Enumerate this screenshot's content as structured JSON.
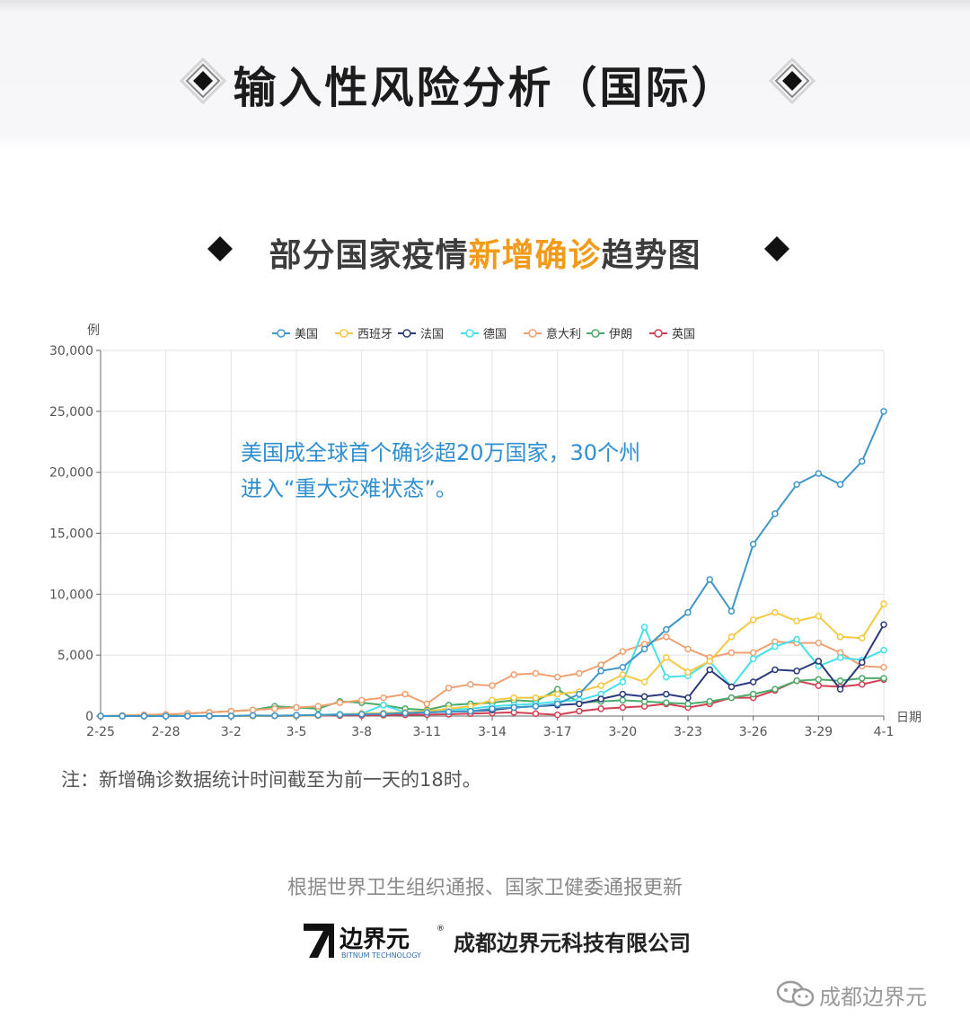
{
  "header": {
    "title": "输入性风险分析（国际）"
  },
  "chart_header": {
    "title_prefix": "部分国家疫情",
    "title_highlight": "新增确诊",
    "title_suffix": "趋势图"
  },
  "annotation": {
    "line1": "美国成全球首个确诊超20万国家，30个州",
    "line2": "进入“重大灾难状态”。"
  },
  "note": "注：新增确诊数据统计时间截至为前一天的18时。",
  "source": "根据世界卫生组织通报、国家卫健委通报更新",
  "company": "成都边界元科技有限公司",
  "logo": {
    "brand_chars": "边界元",
    "english": "BITNUM TECHNOLOGY",
    "mark": "®"
  },
  "wechat_label": "成都边界元",
  "colors": {
    "title_highlight": "#f29a1a",
    "annotation": "#2f8fcf"
  },
  "chart_data": {
    "type": "line",
    "ylabel": "例",
    "xlabel": "日期",
    "ylim": [
      0,
      30000
    ],
    "yticks": [
      "0",
      "5,000",
      "10,000",
      "15,000",
      "20,000",
      "25,000",
      "30,000"
    ],
    "grid": true,
    "legend_position": "top-center",
    "categories": [
      "2-25",
      "2-26",
      "2-27",
      "2-28",
      "2-29",
      "3-1",
      "3-2",
      "3-3",
      "3-4",
      "3-5",
      "3-6",
      "3-7",
      "3-8",
      "3-9",
      "3-10",
      "3-11",
      "3-12",
      "3-13",
      "3-14",
      "3-15",
      "3-16",
      "3-17",
      "3-18",
      "3-19",
      "3-20",
      "3-21",
      "3-22",
      "3-23",
      "3-24",
      "3-25",
      "3-26",
      "3-27",
      "3-28",
      "3-29",
      "3-30",
      "3-31",
      "4-1"
    ],
    "tick_labels": [
      "2-25",
      "2-28",
      "3-2",
      "3-5",
      "3-8",
      "3-11",
      "3-14",
      "3-17",
      "3-20",
      "3-23",
      "3-26",
      "3-29",
      "4-1"
    ],
    "series": [
      {
        "name": "美国",
        "color": "#3f97c8",
        "values": [
          0,
          0,
          0,
          0,
          0,
          0,
          0,
          50,
          30,
          60,
          80,
          120,
          150,
          180,
          250,
          300,
          350,
          400,
          600,
          700,
          800,
          1000,
          1800,
          3700,
          4000,
          5500,
          7100,
          8500,
          11200,
          8600,
          14100,
          16600,
          19000,
          19900,
          19000,
          20900,
          25000
        ]
      },
      {
        "name": "西班牙",
        "color": "#f5c842",
        "values": [
          0,
          0,
          0,
          0,
          0,
          0,
          0,
          10,
          20,
          30,
          50,
          120,
          200,
          250,
          300,
          400,
          600,
          800,
          1300,
          1500,
          1500,
          1800,
          2000,
          2500,
          3400,
          2800,
          4800,
          3600,
          4500,
          6500,
          7900,
          8500,
          7800,
          8200,
          6500,
          6400,
          9200
        ]
      },
      {
        "name": "法国",
        "color": "#2b3a7a",
        "values": [
          0,
          0,
          0,
          0,
          0,
          0,
          0,
          10,
          20,
          30,
          50,
          100,
          150,
          200,
          250,
          300,
          350,
          400,
          500,
          700,
          800,
          900,
          1000,
          1400,
          1800,
          1600,
          1800,
          1500,
          3800,
          2400,
          2800,
          3800,
          3700,
          4500,
          2200,
          4400,
          7500
        ]
      },
      {
        "name": "德国",
        "color": "#45e0e8",
        "values": [
          0,
          0,
          0,
          0,
          0,
          0,
          0,
          20,
          40,
          50,
          100,
          150,
          200,
          900,
          300,
          400,
          500,
          600,
          800,
          900,
          1000,
          1200,
          1300,
          1800,
          2800,
          7300,
          3200,
          3300,
          4500,
          2400,
          4700,
          5700,
          6300,
          4100,
          4800,
          4600,
          5400
        ]
      },
      {
        "name": "意大利",
        "color": "#f0a070",
        "values": [
          0,
          50,
          100,
          150,
          200,
          300,
          400,
          500,
          600,
          700,
          800,
          1100,
          1300,
          1500,
          1800,
          1000,
          2300,
          2600,
          2500,
          3400,
          3500,
          3200,
          3500,
          4200,
          5300,
          5900,
          6500,
          5500,
          4800,
          5200,
          5200,
          6100,
          6000,
          6000,
          5200,
          4100,
          4000
        ]
      },
      {
        "name": "伊朗",
        "color": "#4caa6a",
        "values": [
          0,
          0,
          0,
          100,
          200,
          300,
          400,
          500,
          800,
          700,
          600,
          1200,
          1100,
          900,
          600,
          500,
          900,
          1000,
          1100,
          1300,
          1200,
          2200,
          1100,
          1200,
          1300,
          1200,
          1100,
          1000,
          1200,
          1500,
          1800,
          2200,
          2900,
          3000,
          2900,
          3100,
          3100
        ]
      },
      {
        "name": "英国",
        "color": "#d24054",
        "values": [
          0,
          0,
          0,
          0,
          0,
          0,
          0,
          10,
          20,
          30,
          40,
          50,
          60,
          80,
          100,
          120,
          150,
          200,
          250,
          300,
          200,
          100,
          400,
          600,
          700,
          800,
          1000,
          700,
          1000,
          1500,
          1500,
          2100,
          2900,
          2500,
          2400,
          2600,
          3000
        ]
      }
    ]
  }
}
